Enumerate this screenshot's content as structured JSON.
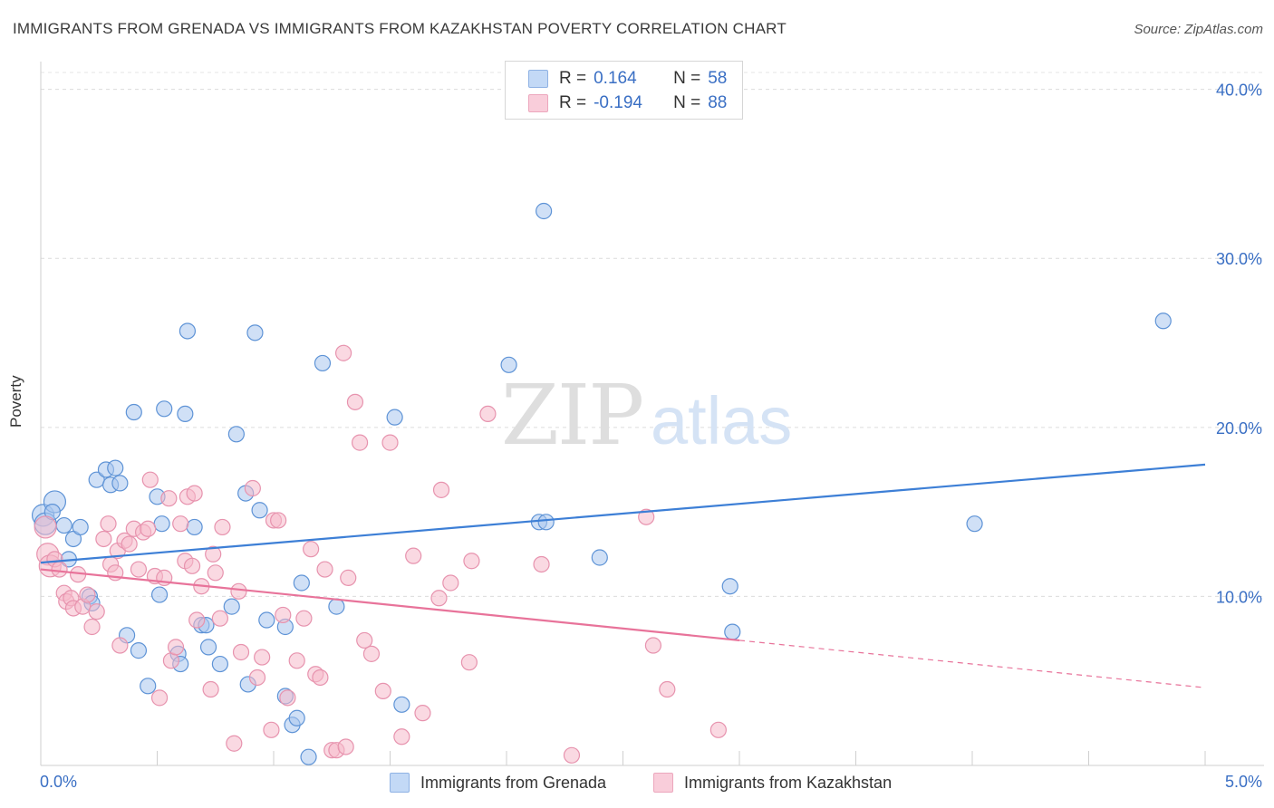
{
  "title": "IMMIGRANTS FROM GRENADA VS IMMIGRANTS FROM KAZAKHSTAN POVERTY CORRELATION CHART",
  "source": "Source: ZipAtlas.com",
  "watermark": {
    "zip": "ZIP",
    "atlas": "atlas"
  },
  "legend_top": [
    {
      "label": "R =",
      "r": " 0.164",
      "n_label": "N =",
      "n": "58",
      "color": "#aac7ee"
    },
    {
      "label": "R =",
      "r": "-0.194",
      "n_label": "N =",
      "n": "88",
      "color": "#f5b9cb"
    }
  ],
  "legend_bottom": [
    {
      "label": "Immigrants from Grenada",
      "color": "#aac7ee"
    },
    {
      "label": "Immigrants from Kazakhstan",
      "color": "#f5b9cb"
    }
  ],
  "chart_data": {
    "type": "scatter",
    "title": "IMMIGRANTS FROM GRENADA VS IMMIGRANTS FROM KAZAKHSTAN POVERTY CORRELATION CHART",
    "xlabel": "",
    "ylabel": "Poverty",
    "xlim": [
      0,
      5
    ],
    "ylim": [
      0,
      41
    ],
    "x_tick_labels": [
      "0.0%",
      "5.0%"
    ],
    "y_ticks": [
      10,
      20,
      30,
      40
    ],
    "y_tick_labels": [
      "10.0%",
      "20.0%",
      "30.0%",
      "40.0%"
    ],
    "grid": true,
    "legend_position": "top-center",
    "colors": {
      "grenada": "#3d7fd6",
      "kazakhstan": "#e8739a"
    },
    "series": [
      {
        "name": "Immigrants from Grenada",
        "color": "#aac7ee",
        "stroke": "#5e93d6",
        "trend": {
          "x": [
            0,
            5
          ],
          "y": [
            12.0,
            17.8
          ],
          "dashed_from": null
        },
        "points": [
          [
            0.01,
            14.8
          ],
          [
            0.02,
            14.3
          ],
          [
            0.06,
            15.6
          ],
          [
            0.05,
            15.0
          ],
          [
            0.1,
            14.2
          ],
          [
            0.12,
            12.2
          ],
          [
            0.14,
            13.4
          ],
          [
            0.17,
            14.1
          ],
          [
            0.21,
            10.0
          ],
          [
            0.22,
            9.6
          ],
          [
            0.24,
            16.9
          ],
          [
            0.28,
            17.5
          ],
          [
            0.3,
            16.6
          ],
          [
            0.32,
            17.6
          ],
          [
            0.34,
            16.7
          ],
          [
            0.37,
            7.7
          ],
          [
            0.42,
            6.8
          ],
          [
            0.46,
            4.7
          ],
          [
            0.5,
            15.9
          ],
          [
            0.52,
            14.3
          ],
          [
            0.51,
            10.1
          ],
          [
            0.59,
            6.6
          ],
          [
            0.6,
            6.0
          ],
          [
            0.62,
            20.8
          ],
          [
            0.63,
            25.7
          ],
          [
            0.66,
            14.1
          ],
          [
            0.69,
            8.3
          ],
          [
            0.71,
            8.3
          ],
          [
            0.72,
            7.0
          ],
          [
            0.77,
            6.0
          ],
          [
            0.82,
            9.4
          ],
          [
            0.84,
            19.6
          ],
          [
            0.88,
            16.1
          ],
          [
            0.89,
            4.8
          ],
          [
            0.92,
            25.6
          ],
          [
            0.94,
            15.1
          ],
          [
            0.97,
            8.6
          ],
          [
            1.05,
            8.2
          ],
          [
            1.05,
            4.1
          ],
          [
            1.08,
            2.4
          ],
          [
            1.1,
            2.8
          ],
          [
            1.12,
            10.8
          ],
          [
            1.15,
            0.5
          ],
          [
            1.21,
            23.8
          ],
          [
            1.27,
            9.4
          ],
          [
            1.52,
            20.6
          ],
          [
            1.55,
            3.6
          ],
          [
            2.01,
            23.7
          ],
          [
            2.14,
            14.4
          ],
          [
            2.17,
            14.4
          ],
          [
            2.16,
            32.8
          ],
          [
            2.4,
            12.3
          ],
          [
            2.97,
            7.9
          ],
          [
            2.96,
            10.6
          ],
          [
            4.01,
            14.3
          ],
          [
            4.82,
            26.3
          ],
          [
            0.4,
            20.9
          ],
          [
            0.53,
            21.1
          ]
        ]
      },
      {
        "name": "Immigrants from Kazakhstan",
        "color": "#f5b9cb",
        "stroke": "#e793ae",
        "trend": {
          "x": [
            0,
            5
          ],
          "y": [
            11.6,
            4.6
          ],
          "dashed_from": 3.0
        },
        "points": [
          [
            0.02,
            14.1
          ],
          [
            0.03,
            12.5
          ],
          [
            0.04,
            11.8
          ],
          [
            0.06,
            12.2
          ],
          [
            0.08,
            11.6
          ],
          [
            0.1,
            10.2
          ],
          [
            0.11,
            9.7
          ],
          [
            0.13,
            9.9
          ],
          [
            0.14,
            9.3
          ],
          [
            0.16,
            11.3
          ],
          [
            0.18,
            9.4
          ],
          [
            0.2,
            10.1
          ],
          [
            0.22,
            8.2
          ],
          [
            0.24,
            9.1
          ],
          [
            0.27,
            13.4
          ],
          [
            0.29,
            14.3
          ],
          [
            0.3,
            11.9
          ],
          [
            0.32,
            11.4
          ],
          [
            0.33,
            12.7
          ],
          [
            0.34,
            7.1
          ],
          [
            0.36,
            13.3
          ],
          [
            0.38,
            13.1
          ],
          [
            0.4,
            14.0
          ],
          [
            0.42,
            11.6
          ],
          [
            0.44,
            13.8
          ],
          [
            0.46,
            14.0
          ],
          [
            0.47,
            16.9
          ],
          [
            0.49,
            11.2
          ],
          [
            0.51,
            4.0
          ],
          [
            0.53,
            11.1
          ],
          [
            0.55,
            15.8
          ],
          [
            0.56,
            6.2
          ],
          [
            0.58,
            7.0
          ],
          [
            0.6,
            14.3
          ],
          [
            0.62,
            12.1
          ],
          [
            0.63,
            15.9
          ],
          [
            0.65,
            11.8
          ],
          [
            0.66,
            16.1
          ],
          [
            0.67,
            8.6
          ],
          [
            0.69,
            10.6
          ],
          [
            0.73,
            4.5
          ],
          [
            0.74,
            12.5
          ],
          [
            0.75,
            11.4
          ],
          [
            0.77,
            8.7
          ],
          [
            0.78,
            14.1
          ],
          [
            0.83,
            1.3
          ],
          [
            0.85,
            10.3
          ],
          [
            0.86,
            6.7
          ],
          [
            0.91,
            16.4
          ],
          [
            0.93,
            5.2
          ],
          [
            0.95,
            6.4
          ],
          [
            0.99,
            2.1
          ],
          [
            1.0,
            14.5
          ],
          [
            1.02,
            14.5
          ],
          [
            1.04,
            8.9
          ],
          [
            1.06,
            4.0
          ],
          [
            1.1,
            6.2
          ],
          [
            1.13,
            8.7
          ],
          [
            1.16,
            12.8
          ],
          [
            1.18,
            5.4
          ],
          [
            1.2,
            5.2
          ],
          [
            1.22,
            11.6
          ],
          [
            1.25,
            0.9
          ],
          [
            1.27,
            0.9
          ],
          [
            1.3,
            24.4
          ],
          [
            1.31,
            1.1
          ],
          [
            1.32,
            11.1
          ],
          [
            1.35,
            21.5
          ],
          [
            1.37,
            19.1
          ],
          [
            1.39,
            7.4
          ],
          [
            1.42,
            6.6
          ],
          [
            1.47,
            4.4
          ],
          [
            1.5,
            19.1
          ],
          [
            1.55,
            1.7
          ],
          [
            1.6,
            12.4
          ],
          [
            1.64,
            3.1
          ],
          [
            1.71,
            9.9
          ],
          [
            1.72,
            16.3
          ],
          [
            1.76,
            10.8
          ],
          [
            1.84,
            6.1
          ],
          [
            1.85,
            12.1
          ],
          [
            1.92,
            20.8
          ],
          [
            2.15,
            11.9
          ],
          [
            2.28,
            0.6
          ],
          [
            2.6,
            14.7
          ],
          [
            2.63,
            7.1
          ],
          [
            2.69,
            4.5
          ],
          [
            2.91,
            2.1
          ]
        ]
      }
    ]
  }
}
